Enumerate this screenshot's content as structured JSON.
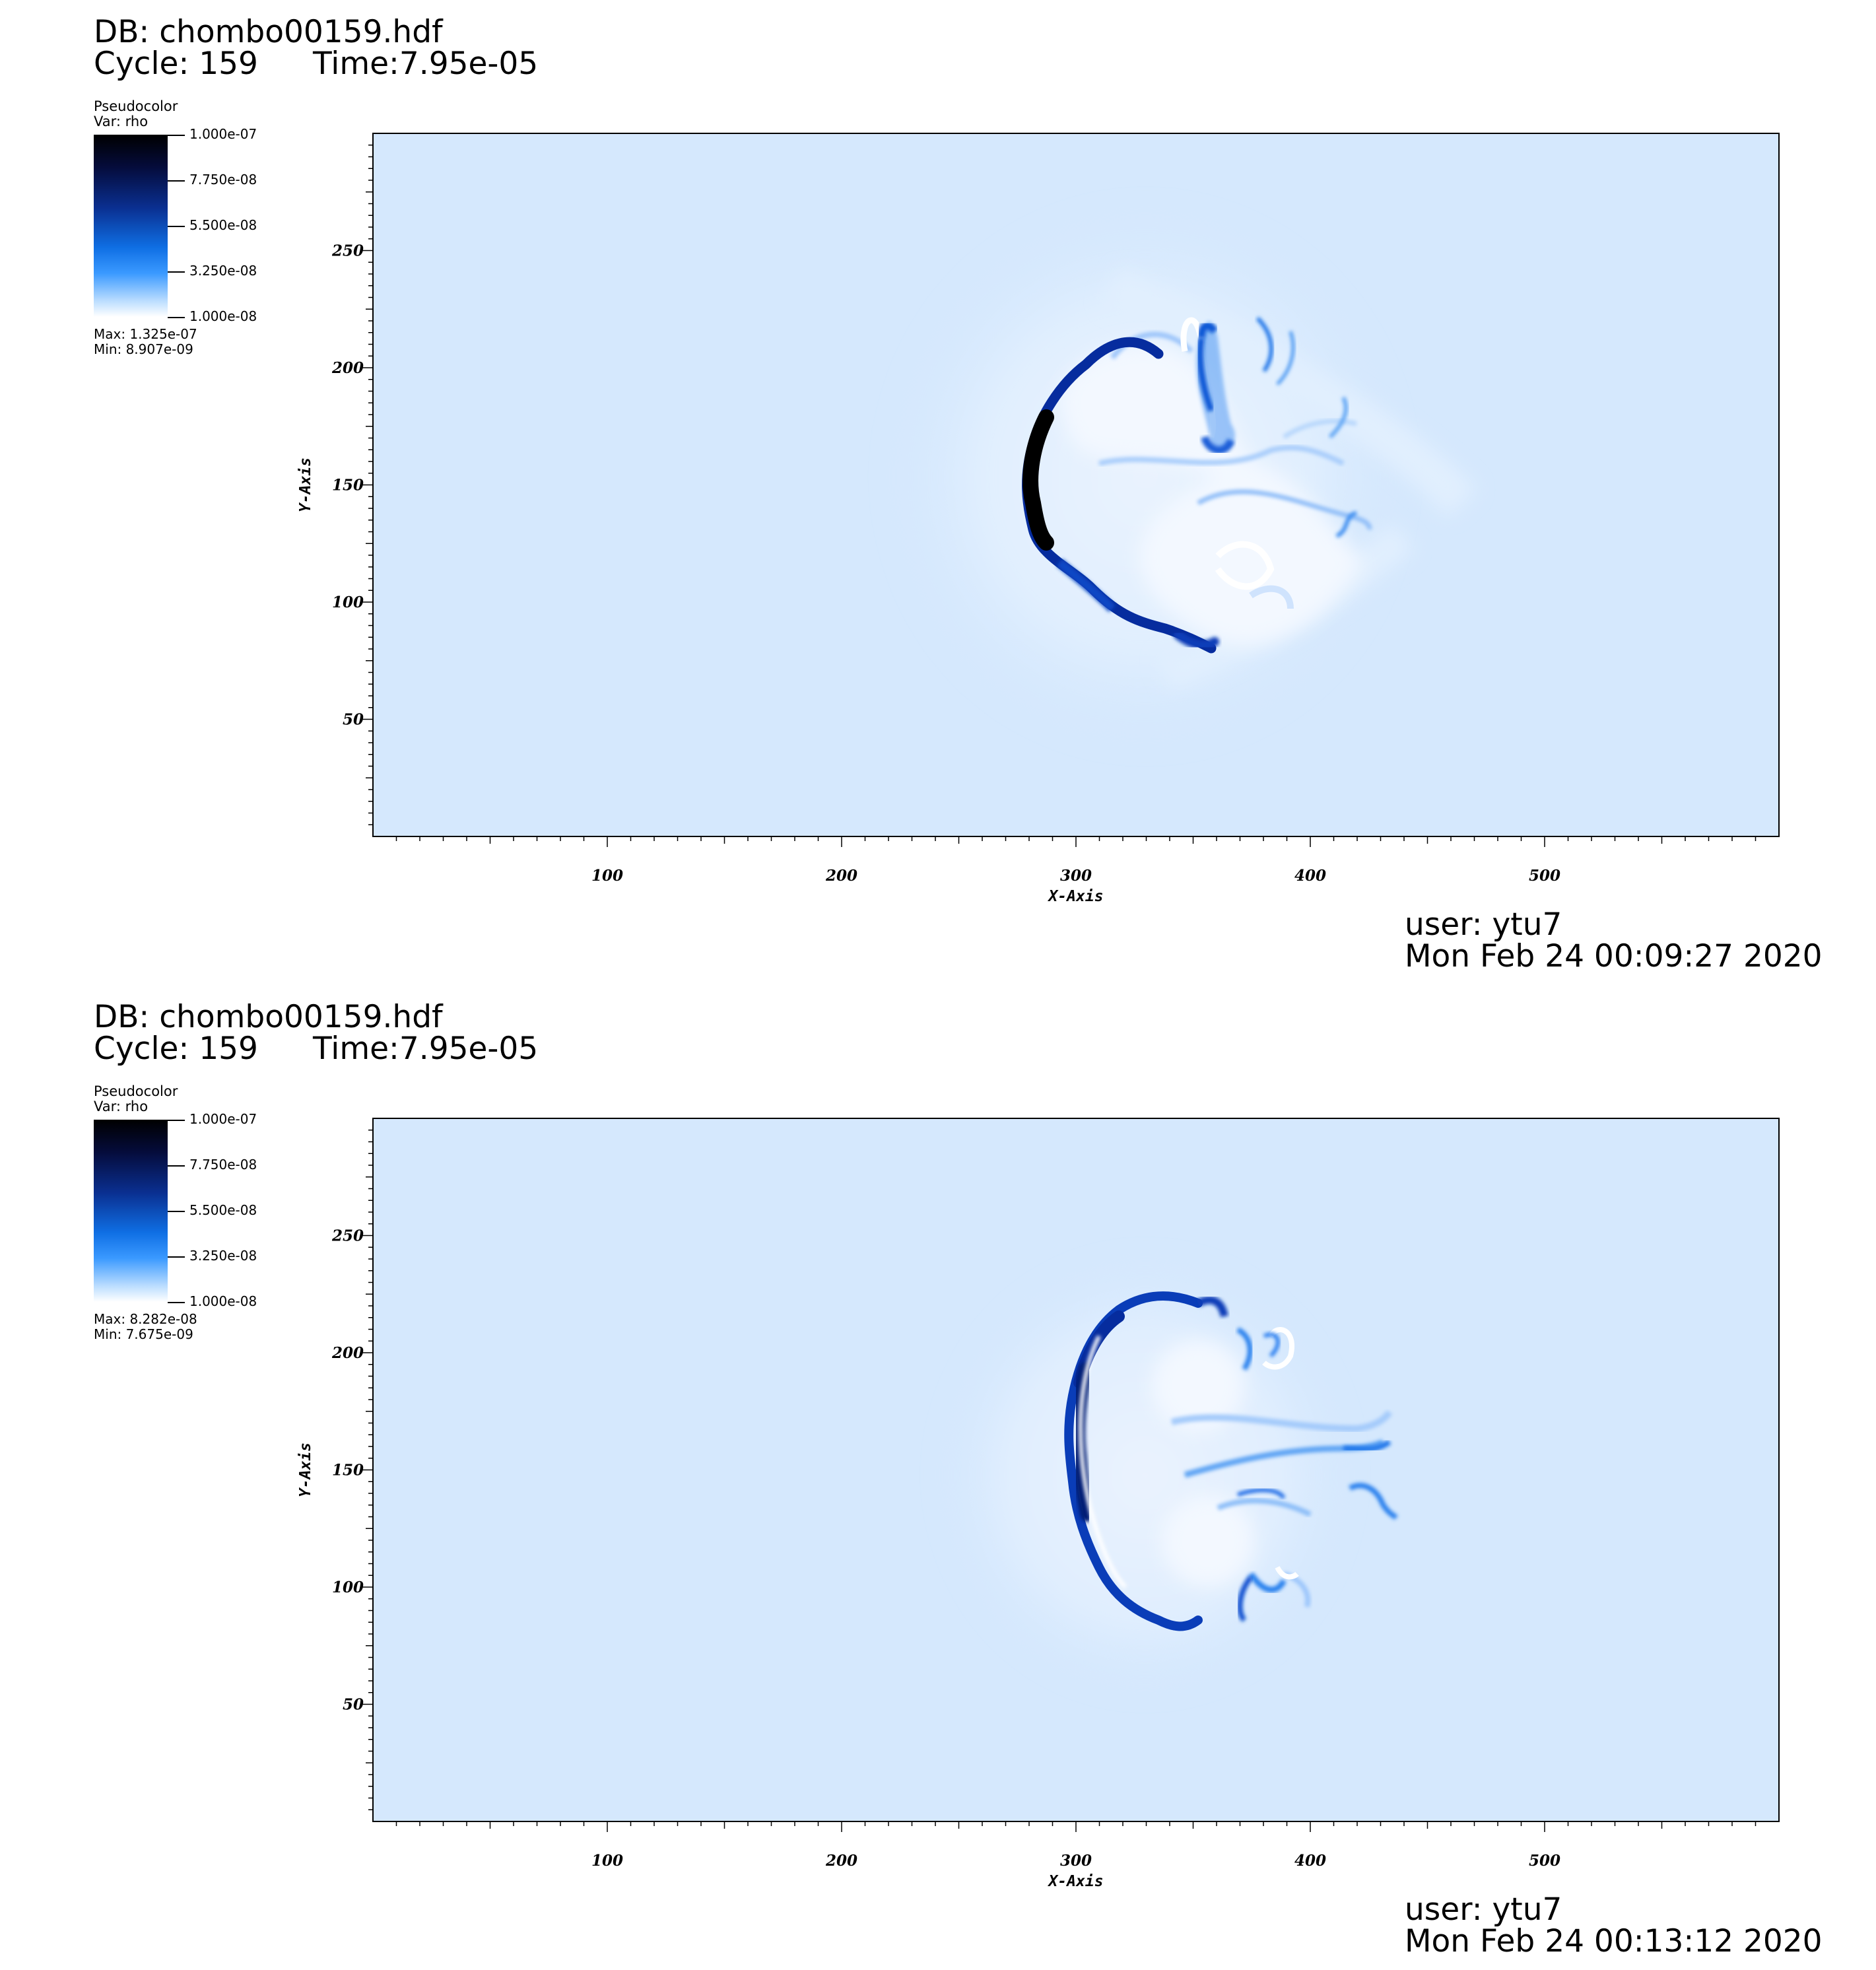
{
  "chart_data": [
    {
      "type": "heatmap",
      "header": {
        "db": "DB: chombo00159.hdf",
        "cycle": "Cycle: 159",
        "time": "Time:7.95e-05"
      },
      "legend": {
        "title": "Pseudocolor",
        "var": "Var: rho",
        "colormap": [
          "#000000",
          "#0a2f90",
          "#0f6fe4",
          "#3a99ff",
          "#ffffff"
        ],
        "ticks": [
          "1.000e-07",
          "7.750e-08",
          "5.500e-08",
          "3.250e-08",
          "1.000e-08"
        ],
        "tick_values": [
          1e-07,
          7.75e-08,
          5.5e-08,
          3.25e-08,
          1e-08
        ],
        "max": "Max:  1.325e-07",
        "min": "Min:  8.907e-09"
      },
      "xlabel": "X-Axis",
      "ylabel": "Y-Axis",
      "xlim": [
        0,
        600
      ],
      "ylim": [
        0,
        300
      ],
      "xticks": [
        "100",
        "200",
        "300",
        "400",
        "500"
      ],
      "yticks": [
        "50",
        "100",
        "150",
        "200",
        "250"
      ],
      "footer": {
        "user": "user: ytu7",
        "date": "Mon Feb 24 00:09:27 2020"
      },
      "background_color": "#d5e8fd"
    },
    {
      "type": "heatmap",
      "header": {
        "db": "DB: chombo00159.hdf",
        "cycle": "Cycle: 159",
        "time": "Time:7.95e-05"
      },
      "legend": {
        "title": "Pseudocolor",
        "var": "Var: rho",
        "colormap": [
          "#000000",
          "#0a2f90",
          "#0f6fe4",
          "#3a99ff",
          "#ffffff"
        ],
        "ticks": [
          "1.000e-07",
          "7.750e-08",
          "5.500e-08",
          "3.250e-08",
          "1.000e-08"
        ],
        "tick_values": [
          1e-07,
          7.75e-08,
          5.5e-08,
          3.25e-08,
          1e-08
        ],
        "max": "Max:  8.282e-08",
        "min": "Min:  7.675e-09"
      },
      "xlabel": "X-Axis",
      "ylabel": "Y-Axis",
      "xlim": [
        0,
        600
      ],
      "ylim": [
        0,
        300
      ],
      "xticks": [
        "100",
        "200",
        "300",
        "400",
        "500"
      ],
      "yticks": [
        "50",
        "100",
        "150",
        "200",
        "250"
      ],
      "footer": {
        "user": "user: ytu7",
        "date": "Mon Feb 24 00:13:12 2020"
      },
      "background_color": "#d5e8fd"
    }
  ]
}
